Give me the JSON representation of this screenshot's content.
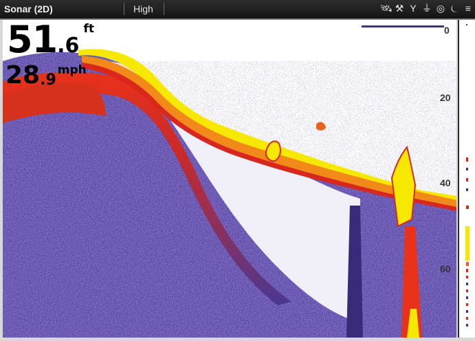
{
  "header": {
    "title": "Sonar (2D)",
    "sensitivity": "High",
    "icons": [
      "satellite-icon",
      "tools-icon",
      "antenna-icon",
      "transducer-icon",
      "compass-icon",
      "alarm-icon",
      "menu-icon"
    ]
  },
  "readouts": {
    "depth": {
      "integer": "51",
      "decimal": ".6",
      "unit": "ft"
    },
    "speed": {
      "integer": "28",
      "decimal": ".9",
      "unit": "mph"
    }
  },
  "depth_scale": {
    "labels": [
      "0",
      "20",
      "40",
      "60"
    ]
  },
  "colors": {
    "palette_strong": "#f6e800",
    "palette_mid": "#e2301c",
    "palette_weak": "#4b3a9a",
    "background": "#ffffff"
  }
}
